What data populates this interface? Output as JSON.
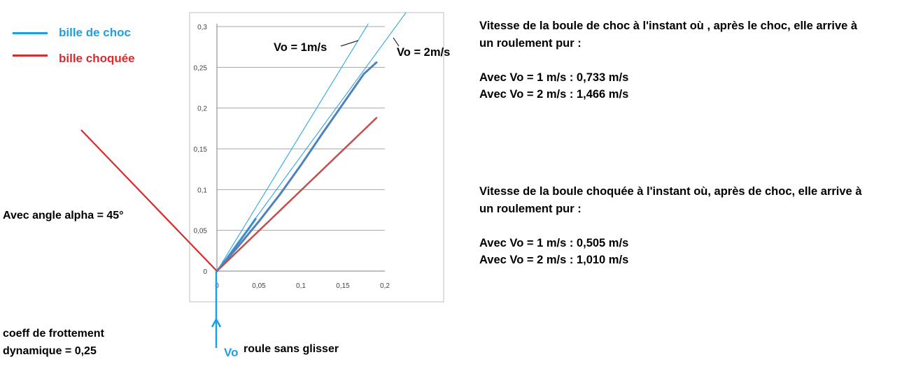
{
  "legend": [
    {
      "label": "bille de choc",
      "color": "#1ba1e2"
    },
    {
      "label": "bille choquée",
      "color": "#d92b2b"
    }
  ],
  "left_notes": {
    "angle": "Avec angle alpha = 45°",
    "friction_line1": "coeff de frottement",
    "friction_line2": "dynamique = 0,25"
  },
  "bottom_notes": {
    "vo": "Vo",
    "rolling": "roule sans glisser"
  },
  "right_block_1": {
    "line1": "Vitesse de la boule de choc à l'instant où , après le choc, elle arrive à",
    "line2": "un roulement pur :",
    "line3": "Avec Vo = 1 m/s : 0,733 m/s",
    "line4": "Avec Vo = 2 m/s : 1,466 m/s"
  },
  "right_block_2": {
    "line1": "Vitesse de la boule choquée à l'instant où, après de choc, elle arrive à",
    "line2": "un roulement pur :",
    "line3": "Avec Vo = 1 m/s :  0,505 m/s",
    "line4": "Avec Vo = 2 m/s :  1,010 m/s"
  },
  "colors": {
    "choc": "#1ba1e2",
    "choque": "#d92b2b",
    "series_choc": "#4f81bd",
    "series_choque": "#c0504d",
    "thin_lines": "#1ba1e2",
    "grid": "#a6a6a6"
  },
  "chart_data": {
    "type": "line",
    "xlim": [
      0,
      0.2
    ],
    "ylim": [
      0,
      0.3
    ],
    "x_ticks": [
      "0",
      "0,05",
      "0,1",
      "0,15",
      "0,2"
    ],
    "y_ticks": [
      "0",
      "0,05",
      "0,1",
      "0,15",
      "0,2",
      "0,25",
      "0,3"
    ],
    "grid": "horizontal",
    "annotations": [
      {
        "text": "Vo = 1m/s"
      },
      {
        "text": "Vo = 2m/s"
      }
    ],
    "series": [
      {
        "x": [
          0,
          0.0115,
          0.023,
          0.0345,
          0.046
        ],
        "y": [
          0,
          0.0151,
          0.0313,
          0.0473,
          0.064
        ]
      },
      {
        "x": [
          0,
          0.025,
          0.05,
          0.075,
          0.1,
          0.125,
          0.15,
          0.175,
          0.19
        ],
        "y": [
          0,
          0.0299,
          0.061,
          0.094,
          0.13,
          0.168,
          0.205,
          0.242,
          0.256
        ]
      },
      {
        "x": [
          0,
          0.19
        ],
        "y": [
          0,
          0.188
        ]
      },
      {
        "x": [
          0,
          0.18
        ],
        "y": [
          0,
          0.303
        ]
      },
      {
        "x": [
          0,
          0.225
        ],
        "y": [
          0,
          0.317
        ]
      }
    ]
  }
}
